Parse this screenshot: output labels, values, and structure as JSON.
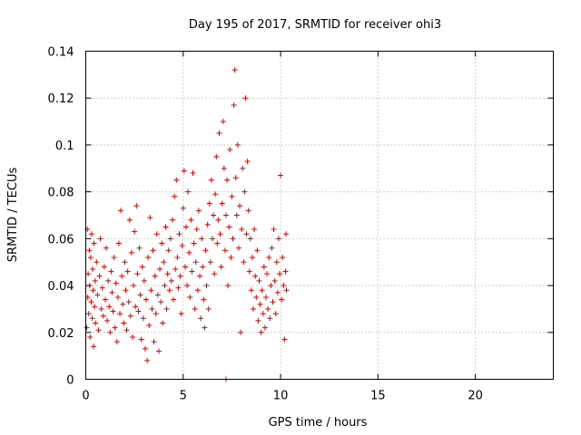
{
  "chart_data": {
    "type": "scatter",
    "title": "Day 195 of 2017, SRMTID for receiver ohi3",
    "xlabel": "GPS time / hours",
    "ylabel": "SRMTID / TECUs",
    "xlim": [
      0,
      24
    ],
    "ylim": [
      0,
      0.14
    ],
    "x_ticks": [
      0,
      5,
      10,
      15,
      20
    ],
    "x_tick_labels": [
      "0",
      "5",
      "10",
      "15",
      "20"
    ],
    "y_ticks": [
      0,
      0.02,
      0.04,
      0.06,
      0.08,
      0.1,
      0.12,
      0.14
    ],
    "y_tick_labels": [
      "0",
      "0.02",
      "0.04",
      "0.06",
      "0.08",
      "0.1",
      "0.12",
      "0.14"
    ],
    "grid": true,
    "marker": "plus",
    "color": "#e00000",
    "series": [
      {
        "name": "ohi3",
        "points": [
          [
            0.05,
            0.022
          ],
          [
            0.08,
            0.064
          ],
          [
            0.1,
            0.035
          ],
          [
            0.12,
            0.045
          ],
          [
            0.15,
            0.028
          ],
          [
            0.18,
            0.055
          ],
          [
            0.2,
            0.04
          ],
          [
            0.22,
            0.018
          ],
          [
            0.25,
            0.052
          ],
          [
            0.28,
            0.033
          ],
          [
            0.3,
            0.062
          ],
          [
            0.33,
            0.026
          ],
          [
            0.35,
            0.047
          ],
          [
            0.38,
            0.038
          ],
          [
            0.4,
            0.014
          ],
          [
            0.42,
            0.058
          ],
          [
            0.45,
            0.031
          ],
          [
            0.48,
            0.042
          ],
          [
            0.5,
            0.024
          ],
          [
            0.55,
            0.05
          ],
          [
            0.6,
            0.036
          ],
          [
            0.65,
            0.021
          ],
          [
            0.7,
            0.044
          ],
          [
            0.75,
            0.06
          ],
          [
            0.8,
            0.03
          ],
          [
            0.85,
            0.039
          ],
          [
            0.9,
            0.027
          ],
          [
            0.95,
            0.048
          ],
          [
            1.0,
            0.034
          ],
          [
            1.05,
            0.056
          ],
          [
            1.1,
            0.025
          ],
          [
            1.15,
            0.042
          ],
          [
            1.2,
            0.031
          ],
          [
            1.25,
            0.02
          ],
          [
            1.3,
            0.046
          ],
          [
            1.35,
            0.037
          ],
          [
            1.4,
            0.029
          ],
          [
            1.45,
            0.052
          ],
          [
            1.5,
            0.022
          ],
          [
            1.55,
            0.041
          ],
          [
            1.6,
            0.016
          ],
          [
            1.65,
            0.035
          ],
          [
            1.7,
            0.058
          ],
          [
            1.75,
            0.028
          ],
          [
            1.8,
            0.072
          ],
          [
            1.85,
            0.044
          ],
          [
            1.9,
            0.032
          ],
          [
            1.95,
            0.024
          ],
          [
            2.0,
            0.05
          ],
          [
            2.05,
            0.038
          ],
          [
            2.1,
            0.021
          ],
          [
            2.15,
            0.046
          ],
          [
            2.2,
            0.033
          ],
          [
            2.25,
            0.068
          ],
          [
            2.3,
            0.027
          ],
          [
            2.35,
            0.054
          ],
          [
            2.4,
            0.018
          ],
          [
            2.45,
            0.04
          ],
          [
            2.5,
            0.063
          ],
          [
            2.55,
            0.031
          ],
          [
            2.6,
            0.074
          ],
          [
            2.65,
            0.045
          ],
          [
            2.7,
            0.029
          ],
          [
            2.75,
            0.056
          ],
          [
            2.8,
            0.036
          ],
          [
            2.85,
            0.017
          ],
          [
            2.9,
            0.048
          ],
          [
            2.95,
            0.026
          ],
          [
            3.0,
            0.042
          ],
          [
            3.05,
            0.013
          ],
          [
            3.1,
            0.034
          ],
          [
            3.15,
            0.008
          ],
          [
            3.2,
            0.052
          ],
          [
            3.25,
            0.023
          ],
          [
            3.3,
            0.069
          ],
          [
            3.35,
            0.038
          ],
          [
            3.4,
            0.03
          ],
          [
            3.45,
            0.055
          ],
          [
            3.5,
            0.016
          ],
          [
            3.55,
            0.044
          ],
          [
            3.6,
            0.028
          ],
          [
            3.65,
            0.062
          ],
          [
            3.7,
            0.036
          ],
          [
            3.75,
            0.012
          ],
          [
            3.8,
            0.047
          ],
          [
            3.85,
            0.033
          ],
          [
            3.9,
            0.058
          ],
          [
            3.95,
            0.024
          ],
          [
            4.0,
            0.05
          ],
          [
            4.05,
            0.04
          ],
          [
            4.1,
            0.065
          ],
          [
            4.15,
            0.03
          ],
          [
            4.2,
            0.045
          ],
          [
            4.25,
            0.055
          ],
          [
            4.3,
            0.038
          ],
          [
            4.35,
            0.06
          ],
          [
            4.4,
            0.042
          ],
          [
            4.45,
            0.068
          ],
          [
            4.5,
            0.034
          ],
          [
            4.55,
            0.078
          ],
          [
            4.6,
            0.047
          ],
          [
            4.65,
            0.085
          ],
          [
            4.7,
            0.052
          ],
          [
            4.75,
            0.039
          ],
          [
            4.8,
            0.062
          ],
          [
            4.85,
            0.044
          ],
          [
            4.9,
            0.028
          ],
          [
            4.95,
            0.057
          ],
          [
            5.0,
            0.073
          ],
          [
            5.05,
            0.089
          ],
          [
            5.1,
            0.048
          ],
          [
            5.15,
            0.065
          ],
          [
            5.2,
            0.04
          ],
          [
            5.25,
            0.08
          ],
          [
            5.3,
            0.054
          ],
          [
            5.35,
            0.035
          ],
          [
            5.4,
            0.068
          ],
          [
            5.45,
            0.046
          ],
          [
            5.5,
            0.088
          ],
          [
            5.55,
            0.058
          ],
          [
            5.6,
            0.03
          ],
          [
            5.65,
            0.05
          ],
          [
            5.7,
            0.064
          ],
          [
            5.75,
            0.038
          ],
          [
            5.8,
            0.072
          ],
          [
            5.85,
            0.044
          ],
          [
            5.9,
            0.026
          ],
          [
            5.95,
            0.06
          ],
          [
            6.0,
            0.048
          ],
          [
            6.05,
            0.034
          ],
          [
            6.1,
            0.022
          ],
          [
            6.15,
            0.055
          ],
          [
            6.2,
            0.04
          ],
          [
            6.25,
            0.066
          ],
          [
            6.3,
            0.03
          ],
          [
            6.35,
            0.075
          ],
          [
            6.4,
            0.05
          ],
          [
            6.45,
            0.085
          ],
          [
            6.5,
            0.06
          ],
          [
            6.55,
            0.07
          ],
          [
            6.6,
            0.045
          ],
          [
            6.65,
            0.079
          ],
          [
            6.7,
            0.095
          ],
          [
            6.75,
            0.058
          ],
          [
            6.8,
            0.068
          ],
          [
            6.85,
            0.105
          ],
          [
            6.9,
            0.062
          ],
          [
            6.95,
            0.048
          ],
          [
            7.0,
            0.075
          ],
          [
            7.05,
            0.11
          ],
          [
            7.1,
            0.09
          ],
          [
            7.15,
            0.055
          ],
          [
            7.2,
            0.07
          ],
          [
            7.25,
            0.085
          ],
          [
            7.3,
            0.04
          ],
          [
            7.35,
            0.065
          ],
          [
            7.4,
            0.098
          ],
          [
            7.45,
            0.052
          ],
          [
            7.5,
            0.078
          ],
          [
            7.55,
            0.06
          ],
          [
            7.6,
            0.117
          ],
          [
            7.65,
            0.132
          ],
          [
            7.7,
            0.086
          ],
          [
            7.75,
            0.07
          ],
          [
            7.8,
            0.1
          ],
          [
            7.85,
            0.056
          ],
          [
            7.9,
            0.074
          ],
          [
            7.95,
            0.02
          ],
          [
            8.0,
            0.064
          ],
          [
            8.05,
            0.09
          ],
          [
            8.1,
            0.05
          ],
          [
            8.15,
            0.08
          ],
          [
            8.2,
            0.12
          ],
          [
            8.25,
            0.062
          ],
          [
            8.3,
            0.093
          ],
          [
            8.35,
            0.072
          ],
          [
            8.4,
            0.046
          ],
          [
            8.45,
            0.06
          ],
          [
            8.5,
            0.038
          ],
          [
            8.55,
            0.052
          ],
          [
            8.6,
            0.03
          ],
          [
            8.65,
            0.064
          ],
          [
            8.7,
            0.044
          ],
          [
            8.75,
            0.035
          ],
          [
            8.8,
            0.055
          ],
          [
            8.85,
            0.025
          ],
          [
            8.9,
            0.042
          ],
          [
            8.95,
            0.032
          ],
          [
            9.0,
            0.02
          ],
          [
            9.05,
            0.038
          ],
          [
            9.1,
            0.028
          ],
          [
            9.15,
            0.048
          ],
          [
            9.2,
            0.022
          ],
          [
            9.25,
            0.035
          ],
          [
            9.3,
            0.045
          ],
          [
            9.35,
            0.03
          ],
          [
            9.4,
            0.052
          ],
          [
            9.45,
            0.026
          ],
          [
            9.5,
            0.04
          ],
          [
            9.55,
            0.056
          ],
          [
            9.6,
            0.033
          ],
          [
            9.65,
            0.064
          ],
          [
            9.7,
            0.042
          ],
          [
            9.75,
            0.028
          ],
          [
            9.8,
            0.05
          ],
          [
            9.85,
            0.037
          ],
          [
            9.9,
            0.06
          ],
          [
            9.95,
            0.045
          ],
          [
            10.0,
            0.087
          ],
          [
            10.05,
            0.034
          ],
          [
            10.1,
            0.052
          ],
          [
            10.15,
            0.04
          ],
          [
            10.2,
            0.017
          ],
          [
            10.25,
            0.046
          ],
          [
            10.28,
            0.062
          ],
          [
            10.3,
            0.038
          ],
          [
            7.2,
            0.0
          ]
        ]
      }
    ]
  }
}
